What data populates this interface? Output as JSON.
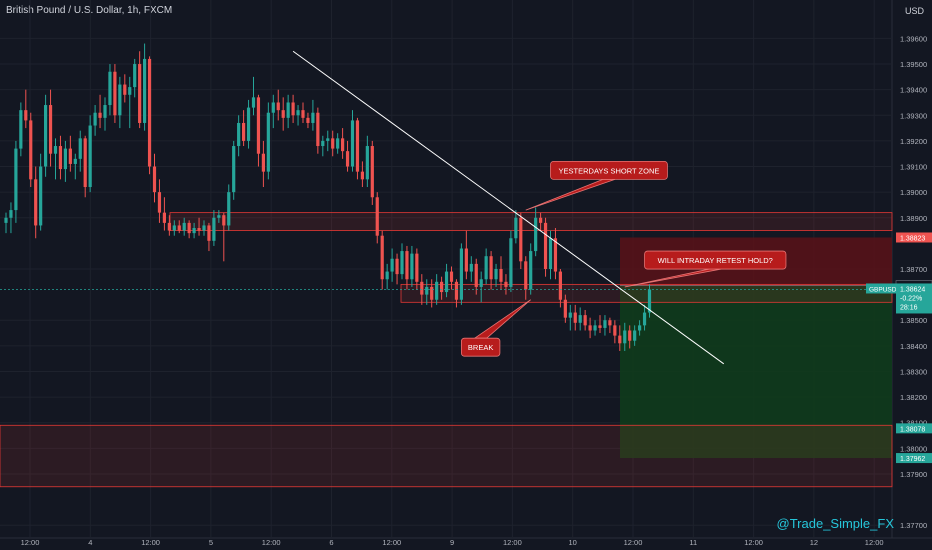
{
  "header": {
    "title": "British Pound / U.S. Dollar, 1h, FXCM",
    "currency": "USD"
  },
  "watermark": "@Trade_Simple_FX",
  "colors": {
    "background": "#131722",
    "up": "#26a69a",
    "down": "#ef5350",
    "zone_stroke": "#e53935",
    "stop_fill": "#5a1218",
    "target_fill": "#0f3b1c",
    "callout_fill": "#b71c1c",
    "trendline": "#ffffff",
    "watermark": "#26c6da"
  },
  "chart_data": {
    "type": "candlestick",
    "symbol": "GBPUSD",
    "timeframe": "1h",
    "ylim": [
      1.3765,
      1.3975
    ],
    "yticks": [
      "1.39600",
      "1.39500",
      "1.39400",
      "1.39300",
      "1.39200",
      "1.39100",
      "1.39000",
      "1.38900",
      "1.38700",
      "1.38500",
      "1.38400",
      "1.38300",
      "1.38200",
      "1.38100",
      "1.38000",
      "1.37900",
      "1.37700"
    ],
    "xticks": [
      "12:00",
      "4",
      "12:00",
      "5",
      "12:00",
      "6",
      "12:00",
      "9",
      "12:00",
      "10",
      "12:00",
      "11",
      "12:00",
      "12",
      "12:00"
    ],
    "price_labels": [
      {
        "label": "1.38823",
        "value": 1.38823,
        "color": "#ef5350"
      },
      {
        "label": "1.38635",
        "value": 1.38635,
        "color": "#131722"
      },
      {
        "label": "GBPUSD",
        "value": 1.38624,
        "color": "#26a69a",
        "extra": [
          "1.38624",
          "-0.22%",
          "28:16"
        ]
      },
      {
        "label": "1.38078",
        "value": 1.38078,
        "color": "#26a69a"
      },
      {
        "label": "1.37962",
        "value": 1.37962,
        "color": "#26a69a"
      }
    ],
    "zones": [
      {
        "name": "upper-zone",
        "y1": 1.3892,
        "y2": 1.3885
      },
      {
        "name": "middle-zone",
        "y1": 1.3864,
        "y2": 1.3857
      },
      {
        "name": "lower-zone",
        "y1": 1.3809,
        "y2": 1.3785
      }
    ],
    "position": {
      "entry": 1.38635,
      "stop": 1.38823,
      "target": 1.37962
    },
    "trendline": [
      {
        "t": 58,
        "p": 1.3955
      },
      {
        "t": 145,
        "p": 1.3833
      }
    ],
    "callouts": [
      {
        "text": "YESTERDAYS SHORT ZONE",
        "box_t": 110,
        "box_p": 1.3912,
        "arrow_t": 105,
        "arrow_p": 1.3893
      },
      {
        "text": "WILL INTRADAY RETEST HOLD?",
        "box_t": 129,
        "box_p": 1.3877,
        "arrow_t": 125,
        "arrow_p": 1.3863
      },
      {
        "text": "BREAK",
        "box_t": 92,
        "box_p": 1.3843,
        "arrow_t": 106,
        "arrow_p": 1.3858
      }
    ],
    "candles": [
      {
        "o": 1.3888,
        "h": 1.3892,
        "l": 1.3884,
        "c": 1.389
      },
      {
        "o": 1.389,
        "h": 1.3896,
        "l": 1.3884,
        "c": 1.3893
      },
      {
        "o": 1.3893,
        "h": 1.392,
        "l": 1.3888,
        "c": 1.3917
      },
      {
        "o": 1.3917,
        "h": 1.3935,
        "l": 1.3914,
        "c": 1.3932
      },
      {
        "o": 1.3932,
        "h": 1.394,
        "l": 1.3925,
        "c": 1.3928
      },
      {
        "o": 1.3928,
        "h": 1.3931,
        "l": 1.3902,
        "c": 1.3905
      },
      {
        "o": 1.3905,
        "h": 1.391,
        "l": 1.3882,
        "c": 1.3887
      },
      {
        "o": 1.3887,
        "h": 1.3915,
        "l": 1.3885,
        "c": 1.391
      },
      {
        "o": 1.391,
        "h": 1.3938,
        "l": 1.3906,
        "c": 1.3934
      },
      {
        "o": 1.3934,
        "h": 1.394,
        "l": 1.391,
        "c": 1.3915
      },
      {
        "o": 1.3915,
        "h": 1.3921,
        "l": 1.3905,
        "c": 1.3918
      },
      {
        "o": 1.3918,
        "h": 1.3922,
        "l": 1.3905,
        "c": 1.3909
      },
      {
        "o": 1.3909,
        "h": 1.392,
        "l": 1.3904,
        "c": 1.3917
      },
      {
        "o": 1.3917,
        "h": 1.3922,
        "l": 1.3908,
        "c": 1.3911
      },
      {
        "o": 1.3911,
        "h": 1.3915,
        "l": 1.3905,
        "c": 1.3913
      },
      {
        "o": 1.3913,
        "h": 1.3924,
        "l": 1.3908,
        "c": 1.3921
      },
      {
        "o": 1.3921,
        "h": 1.3922,
        "l": 1.3898,
        "c": 1.3902
      },
      {
        "o": 1.3902,
        "h": 1.393,
        "l": 1.39,
        "c": 1.3926
      },
      {
        "o": 1.3926,
        "h": 1.3934,
        "l": 1.3922,
        "c": 1.3931
      },
      {
        "o": 1.3931,
        "h": 1.3938,
        "l": 1.3925,
        "c": 1.3929
      },
      {
        "o": 1.3929,
        "h": 1.3937,
        "l": 1.3924,
        "c": 1.3934
      },
      {
        "o": 1.3934,
        "h": 1.395,
        "l": 1.393,
        "c": 1.3947
      },
      {
        "o": 1.3947,
        "h": 1.395,
        "l": 1.3927,
        "c": 1.393
      },
      {
        "o": 1.393,
        "h": 1.3945,
        "l": 1.3925,
        "c": 1.3942
      },
      {
        "o": 1.3942,
        "h": 1.3946,
        "l": 1.3935,
        "c": 1.3938
      },
      {
        "o": 1.3938,
        "h": 1.3945,
        "l": 1.3925,
        "c": 1.3941
      },
      {
        "o": 1.3941,
        "h": 1.3952,
        "l": 1.3937,
        "c": 1.395
      },
      {
        "o": 1.395,
        "h": 1.3955,
        "l": 1.3925,
        "c": 1.3927
      },
      {
        "o": 1.3927,
        "h": 1.3958,
        "l": 1.3924,
        "c": 1.3952
      },
      {
        "o": 1.3952,
        "h": 1.3953,
        "l": 1.3907,
        "c": 1.391
      },
      {
        "o": 1.391,
        "h": 1.3915,
        "l": 1.3896,
        "c": 1.39
      },
      {
        "o": 1.39,
        "h": 1.3905,
        "l": 1.3888,
        "c": 1.3892
      },
      {
        "o": 1.3892,
        "h": 1.3898,
        "l": 1.3885,
        "c": 1.3888
      },
      {
        "o": 1.3888,
        "h": 1.3891,
        "l": 1.3883,
        "c": 1.3885
      },
      {
        "o": 1.3885,
        "h": 1.3889,
        "l": 1.3883,
        "c": 1.3887
      },
      {
        "o": 1.3887,
        "h": 1.3889,
        "l": 1.3884,
        "c": 1.3885
      },
      {
        "o": 1.3885,
        "h": 1.389,
        "l": 1.3883,
        "c": 1.3888
      },
      {
        "o": 1.3888,
        "h": 1.3889,
        "l": 1.3882,
        "c": 1.3884
      },
      {
        "o": 1.3884,
        "h": 1.3888,
        "l": 1.3882,
        "c": 1.3886
      },
      {
        "o": 1.3886,
        "h": 1.389,
        "l": 1.3883,
        "c": 1.3885
      },
      {
        "o": 1.3885,
        "h": 1.3889,
        "l": 1.3883,
        "c": 1.3887
      },
      {
        "o": 1.3887,
        "h": 1.3888,
        "l": 1.3877,
        "c": 1.3881
      },
      {
        "o": 1.3881,
        "h": 1.3893,
        "l": 1.3879,
        "c": 1.389
      },
      {
        "o": 1.389,
        "h": 1.3893,
        "l": 1.3888,
        "c": 1.3891
      },
      {
        "o": 1.3891,
        "h": 1.3892,
        "l": 1.3873,
        "c": 1.3887
      },
      {
        "o": 1.3887,
        "h": 1.3903,
        "l": 1.3885,
        "c": 1.39
      },
      {
        "o": 1.39,
        "h": 1.392,
        "l": 1.3897,
        "c": 1.3918
      },
      {
        "o": 1.3918,
        "h": 1.393,
        "l": 1.3914,
        "c": 1.3927
      },
      {
        "o": 1.3927,
        "h": 1.3932,
        "l": 1.3918,
        "c": 1.392
      },
      {
        "o": 1.392,
        "h": 1.3936,
        "l": 1.3917,
        "c": 1.3933
      },
      {
        "o": 1.3933,
        "h": 1.3945,
        "l": 1.393,
        "c": 1.3937
      },
      {
        "o": 1.3937,
        "h": 1.3938,
        "l": 1.391,
        "c": 1.3915
      },
      {
        "o": 1.3915,
        "h": 1.392,
        "l": 1.3902,
        "c": 1.3908
      },
      {
        "o": 1.3908,
        "h": 1.3935,
        "l": 1.3905,
        "c": 1.3931
      },
      {
        "o": 1.3931,
        "h": 1.3938,
        "l": 1.3925,
        "c": 1.3935
      },
      {
        "o": 1.3935,
        "h": 1.394,
        "l": 1.3928,
        "c": 1.3932
      },
      {
        "o": 1.3932,
        "h": 1.3937,
        "l": 1.3924,
        "c": 1.3929
      },
      {
        "o": 1.3929,
        "h": 1.3938,
        "l": 1.3925,
        "c": 1.3935
      },
      {
        "o": 1.3935,
        "h": 1.3938,
        "l": 1.3927,
        "c": 1.393
      },
      {
        "o": 1.393,
        "h": 1.3934,
        "l": 1.3926,
        "c": 1.3932
      },
      {
        "o": 1.3932,
        "h": 1.3935,
        "l": 1.3927,
        "c": 1.3929
      },
      {
        "o": 1.3929,
        "h": 1.3931,
        "l": 1.3925,
        "c": 1.3927
      },
      {
        "o": 1.3927,
        "h": 1.3936,
        "l": 1.3924,
        "c": 1.3931
      },
      {
        "o": 1.3931,
        "h": 1.3933,
        "l": 1.3915,
        "c": 1.3918
      },
      {
        "o": 1.3918,
        "h": 1.3922,
        "l": 1.3914,
        "c": 1.392
      },
      {
        "o": 1.392,
        "h": 1.3924,
        "l": 1.3916,
        "c": 1.3921
      },
      {
        "o": 1.3921,
        "h": 1.3924,
        "l": 1.3914,
        "c": 1.3917
      },
      {
        "o": 1.3917,
        "h": 1.3923,
        "l": 1.3915,
        "c": 1.3921
      },
      {
        "o": 1.3921,
        "h": 1.3925,
        "l": 1.3913,
        "c": 1.3916
      },
      {
        "o": 1.3916,
        "h": 1.392,
        "l": 1.3908,
        "c": 1.391
      },
      {
        "o": 1.391,
        "h": 1.3932,
        "l": 1.3908,
        "c": 1.3928
      },
      {
        "o": 1.3928,
        "h": 1.3929,
        "l": 1.3905,
        "c": 1.3908
      },
      {
        "o": 1.3908,
        "h": 1.3912,
        "l": 1.3902,
        "c": 1.3905
      },
      {
        "o": 1.3905,
        "h": 1.3922,
        "l": 1.3902,
        "c": 1.3918
      },
      {
        "o": 1.3918,
        "h": 1.392,
        "l": 1.3895,
        "c": 1.3898
      },
      {
        "o": 1.3898,
        "h": 1.39,
        "l": 1.388,
        "c": 1.3883
      },
      {
        "o": 1.3883,
        "h": 1.3885,
        "l": 1.3862,
        "c": 1.3866
      },
      {
        "o": 1.3866,
        "h": 1.3872,
        "l": 1.3862,
        "c": 1.3869
      },
      {
        "o": 1.3869,
        "h": 1.3878,
        "l": 1.3865,
        "c": 1.3874
      },
      {
        "o": 1.3874,
        "h": 1.3876,
        "l": 1.3864,
        "c": 1.3868
      },
      {
        "o": 1.3868,
        "h": 1.388,
        "l": 1.3866,
        "c": 1.3877
      },
      {
        "o": 1.3877,
        "h": 1.3879,
        "l": 1.3862,
        "c": 1.3866
      },
      {
        "o": 1.3866,
        "h": 1.3879,
        "l": 1.3863,
        "c": 1.3876
      },
      {
        "o": 1.3876,
        "h": 1.3878,
        "l": 1.3862,
        "c": 1.3865
      },
      {
        "o": 1.3865,
        "h": 1.3868,
        "l": 1.3856,
        "c": 1.386
      },
      {
        "o": 1.386,
        "h": 1.3866,
        "l": 1.3856,
        "c": 1.3863
      },
      {
        "o": 1.3863,
        "h": 1.3866,
        "l": 1.3855,
        "c": 1.3858
      },
      {
        "o": 1.3858,
        "h": 1.3868,
        "l": 1.3856,
        "c": 1.3865
      },
      {
        "o": 1.3865,
        "h": 1.3867,
        "l": 1.3858,
        "c": 1.3861
      },
      {
        "o": 1.3861,
        "h": 1.3872,
        "l": 1.3859,
        "c": 1.3869
      },
      {
        "o": 1.3869,
        "h": 1.3871,
        "l": 1.3862,
        "c": 1.3865
      },
      {
        "o": 1.3865,
        "h": 1.3866,
        "l": 1.3855,
        "c": 1.3858
      },
      {
        "o": 1.3858,
        "h": 1.388,
        "l": 1.3856,
        "c": 1.3878
      },
      {
        "o": 1.3878,
        "h": 1.3885,
        "l": 1.3866,
        "c": 1.3869
      },
      {
        "o": 1.3869,
        "h": 1.3875,
        "l": 1.3865,
        "c": 1.3872
      },
      {
        "o": 1.3872,
        "h": 1.3874,
        "l": 1.386,
        "c": 1.3863
      },
      {
        "o": 1.3863,
        "h": 1.3869,
        "l": 1.3857,
        "c": 1.3866
      },
      {
        "o": 1.3866,
        "h": 1.3878,
        "l": 1.3864,
        "c": 1.3875
      },
      {
        "o": 1.3875,
        "h": 1.3877,
        "l": 1.3862,
        "c": 1.3866
      },
      {
        "o": 1.3866,
        "h": 1.3872,
        "l": 1.3863,
        "c": 1.387
      },
      {
        "o": 1.387,
        "h": 1.3875,
        "l": 1.3862,
        "c": 1.3865
      },
      {
        "o": 1.3865,
        "h": 1.3868,
        "l": 1.386,
        "c": 1.3863
      },
      {
        "o": 1.3863,
        "h": 1.3885,
        "l": 1.3861,
        "c": 1.3882
      },
      {
        "o": 1.3882,
        "h": 1.3893,
        "l": 1.388,
        "c": 1.389
      },
      {
        "o": 1.389,
        "h": 1.3892,
        "l": 1.387,
        "c": 1.3873
      },
      {
        "o": 1.3873,
        "h": 1.3875,
        "l": 1.3858,
        "c": 1.3862
      },
      {
        "o": 1.3862,
        "h": 1.388,
        "l": 1.386,
        "c": 1.3877
      },
      {
        "o": 1.3877,
        "h": 1.3894,
        "l": 1.3875,
        "c": 1.389
      },
      {
        "o": 1.389,
        "h": 1.3892,
        "l": 1.3885,
        "c": 1.3888
      },
      {
        "o": 1.3888,
        "h": 1.389,
        "l": 1.3867,
        "c": 1.387
      },
      {
        "o": 1.387,
        "h": 1.3885,
        "l": 1.3866,
        "c": 1.3882
      },
      {
        "o": 1.3882,
        "h": 1.3886,
        "l": 1.3866,
        "c": 1.3869
      },
      {
        "o": 1.3869,
        "h": 1.387,
        "l": 1.3855,
        "c": 1.3858
      },
      {
        "o": 1.3858,
        "h": 1.386,
        "l": 1.3849,
        "c": 1.3851
      },
      {
        "o": 1.3851,
        "h": 1.3856,
        "l": 1.3846,
        "c": 1.3853
      },
      {
        "o": 1.3853,
        "h": 1.3856,
        "l": 1.3846,
        "c": 1.3849
      },
      {
        "o": 1.3849,
        "h": 1.3855,
        "l": 1.3846,
        "c": 1.3852
      },
      {
        "o": 1.3852,
        "h": 1.3854,
        "l": 1.3846,
        "c": 1.3848
      },
      {
        "o": 1.3848,
        "h": 1.3851,
        "l": 1.3843,
        "c": 1.3846
      },
      {
        "o": 1.3846,
        "h": 1.385,
        "l": 1.3844,
        "c": 1.3848
      },
      {
        "o": 1.3848,
        "h": 1.3852,
        "l": 1.3845,
        "c": 1.3847
      },
      {
        "o": 1.3847,
        "h": 1.3852,
        "l": 1.3844,
        "c": 1.385
      },
      {
        "o": 1.385,
        "h": 1.3851,
        "l": 1.3845,
        "c": 1.3848
      },
      {
        "o": 1.3848,
        "h": 1.385,
        "l": 1.3841,
        "c": 1.3844
      },
      {
        "o": 1.3844,
        "h": 1.3848,
        "l": 1.3838,
        "c": 1.3841
      },
      {
        "o": 1.3841,
        "h": 1.3849,
        "l": 1.3838,
        "c": 1.3846
      },
      {
        "o": 1.3846,
        "h": 1.3848,
        "l": 1.3839,
        "c": 1.3842
      },
      {
        "o": 1.3842,
        "h": 1.3848,
        "l": 1.384,
        "c": 1.3846
      },
      {
        "o": 1.3846,
        "h": 1.385,
        "l": 1.3844,
        "c": 1.3848
      },
      {
        "o": 1.3848,
        "h": 1.3856,
        "l": 1.3846,
        "c": 1.3853
      },
      {
        "o": 1.3853,
        "h": 1.3864,
        "l": 1.3851,
        "c": 1.3862
      }
    ]
  }
}
